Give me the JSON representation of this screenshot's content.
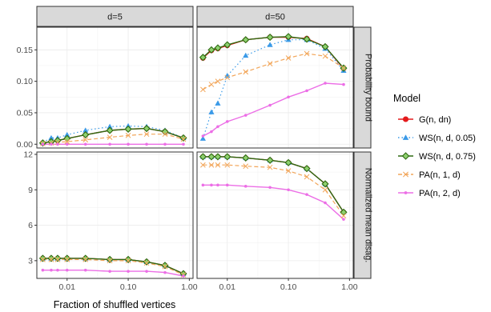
{
  "chart_data": {
    "type": "line",
    "xlabel": "Fraction of shuffled vertices",
    "x_scale": "log",
    "xlim": [
      0.0032,
      1.15
    ],
    "x_ticks": [
      {
        "value": 0.01,
        "label": "0.01"
      },
      {
        "value": 0.1,
        "label": "0.10"
      },
      {
        "value": 1.0,
        "label": "1.00"
      }
    ],
    "x": [
      0.004,
      0.0055,
      0.007,
      0.01,
      0.02,
      0.05,
      0.1,
      0.2,
      0.4,
      0.8
    ],
    "columns": [
      "d=5",
      "d=50"
    ],
    "rows": [
      "Probability bound",
      "Normalized mean disag."
    ],
    "row_scales": [
      {
        "ylim": [
          -0.006,
          0.186
        ],
        "ticks": [
          0.0,
          0.05,
          0.1,
          0.15
        ],
        "tick_labels": [
          "0.00",
          "0.05",
          "0.10",
          "0.15"
        ]
      },
      {
        "ylim": [
          1.5,
          12.2
        ],
        "ticks": [
          3,
          6,
          9,
          12
        ],
        "tick_labels": [
          "3",
          "6",
          "9",
          "12"
        ]
      }
    ],
    "legend": {
      "title": "Model",
      "position": "right",
      "entries": [
        {
          "label": "G(n, dn)",
          "color": "#e41a1c",
          "marker": "circle",
          "dash": "solid"
        },
        {
          "label": "WS(n, d, 0.05)",
          "color": "#3a9ae8",
          "marker": "triangle",
          "dash": "dotted"
        },
        {
          "label": "WS(n, d, 0.75)",
          "color": "#2e6b12",
          "marker": "diamond",
          "dash": "solid"
        },
        {
          "label": "PA(n, 1, d)",
          "color": "#f2a65a",
          "marker": "cross",
          "dash": "dashed"
        },
        {
          "label": "PA(n, 2, d)",
          "color": "#ec6ee6",
          "marker": "plus",
          "dash": "solid"
        }
      ]
    },
    "panels": [
      {
        "row": 0,
        "col": 0,
        "series": [
          {
            "name": "G(n, dn)",
            "values": [
              0.002,
              0.004,
              0.006,
              0.009,
              0.015,
              0.022,
              0.024,
              0.025,
              0.02,
              0.01
            ]
          },
          {
            "name": "WS(n, d, 0.05)",
            "values": [
              0.003,
              0.01,
              0.01,
              0.015,
              0.022,
              0.028,
              0.029,
              0.028,
              0.022,
              0.01
            ]
          },
          {
            "name": "WS(n, d, 0.75)",
            "values": [
              0.002,
              0.004,
              0.006,
              0.009,
              0.015,
              0.022,
              0.024,
              0.025,
              0.02,
              0.01
            ]
          },
          {
            "name": "PA(n, 1, d)",
            "values": [
              0.001,
              0.002,
              0.003,
              0.004,
              0.007,
              0.011,
              0.014,
              0.016,
              0.016,
              0.008
            ]
          },
          {
            "name": "PA(n, 2, d)",
            "values": [
              0.0,
              0.0,
              0.0,
              0.0,
              0.0,
              0.0,
              0.0,
              0.0,
              0.0,
              0.0
            ]
          }
        ]
      },
      {
        "row": 0,
        "col": 1,
        "series": [
          {
            "name": "G(n, dn)",
            "values": [
              0.137,
              0.149,
              0.152,
              0.157,
              0.166,
              0.17,
              0.17,
              0.168,
              0.155,
              0.12
            ]
          },
          {
            "name": "WS(n, d, 0.05)",
            "values": [
              0.009,
              0.051,
              0.065,
              0.109,
              0.141,
              0.158,
              0.166,
              0.166,
              0.152,
              0.117
            ]
          },
          {
            "name": "WS(n, d, 0.75)",
            "values": [
              0.138,
              0.15,
              0.153,
              0.158,
              0.166,
              0.17,
              0.171,
              0.167,
              0.155,
              0.121
            ]
          },
          {
            "name": "PA(n, 1, d)",
            "values": [
              0.087,
              0.095,
              0.1,
              0.106,
              0.115,
              0.128,
              0.137,
              0.144,
              0.14,
              0.121
            ]
          },
          {
            "name": "PA(n, 2, d)",
            "values": [
              0.013,
              0.02,
              0.028,
              0.036,
              0.046,
              0.062,
              0.075,
              0.085,
              0.097,
              0.095
            ]
          }
        ]
      },
      {
        "row": 1,
        "col": 0,
        "series": [
          {
            "name": "G(n, dn)",
            "values": [
              3.2,
              3.2,
              3.2,
              3.2,
              3.2,
              3.1,
              3.1,
              2.9,
              2.6,
              1.9
            ]
          },
          {
            "name": "WS(n, d, 0.05)",
            "values": [
              3.2,
              3.2,
              3.2,
              3.2,
              3.2,
              3.1,
              3.1,
              2.9,
              2.6,
              1.9
            ]
          },
          {
            "name": "WS(n, d, 0.75)",
            "values": [
              3.2,
              3.2,
              3.2,
              3.2,
              3.2,
              3.1,
              3.1,
              2.9,
              2.6,
              1.9
            ]
          },
          {
            "name": "PA(n, 1, d)",
            "values": [
              3.1,
              3.1,
              3.1,
              3.1,
              3.1,
              3.0,
              3.0,
              2.8,
              2.5,
              1.8
            ]
          },
          {
            "name": "PA(n, 2, d)",
            "values": [
              2.2,
              2.2,
              2.2,
              2.2,
              2.2,
              2.1,
              2.1,
              2.1,
              2.0,
              1.7
            ]
          }
        ]
      },
      {
        "row": 1,
        "col": 1,
        "series": [
          {
            "name": "G(n, dn)",
            "values": [
              11.8,
              11.8,
              11.8,
              11.8,
              11.7,
              11.5,
              11.3,
              10.8,
              9.5,
              7.1
            ]
          },
          {
            "name": "WS(n, d, 0.05)",
            "values": [
              11.8,
              11.8,
              11.8,
              11.8,
              11.7,
              11.5,
              11.3,
              10.8,
              9.5,
              7.1
            ]
          },
          {
            "name": "WS(n, d, 0.75)",
            "values": [
              11.8,
              11.8,
              11.8,
              11.8,
              11.7,
              11.5,
              11.3,
              10.8,
              9.5,
              7.1
            ]
          },
          {
            "name": "PA(n, 1, d)",
            "values": [
              11.1,
              11.1,
              11.1,
              11.1,
              11.0,
              10.9,
              10.6,
              10.1,
              9.0,
              6.8
            ]
          },
          {
            "name": "PA(n, 2, d)",
            "values": [
              9.4,
              9.4,
              9.4,
              9.4,
              9.3,
              9.2,
              9.0,
              8.6,
              7.9,
              6.5
            ]
          }
        ]
      }
    ]
  }
}
